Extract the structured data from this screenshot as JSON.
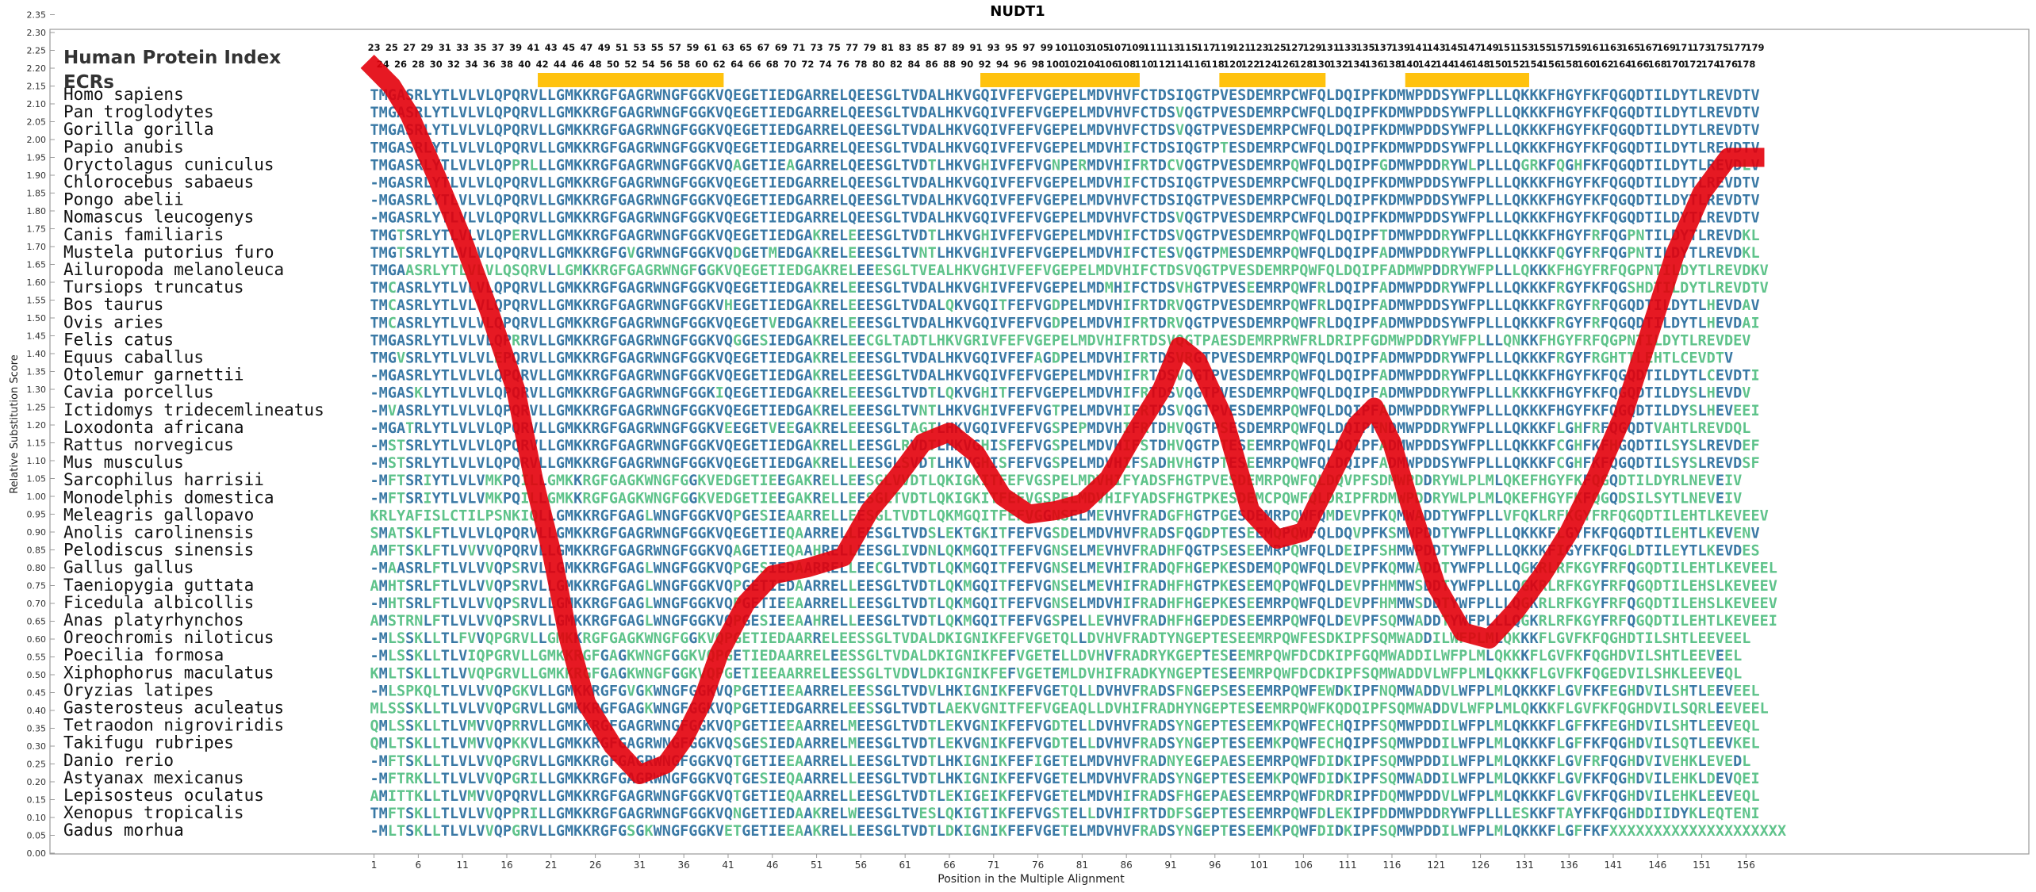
{
  "title": "NUDT1",
  "panel_labels": {
    "index": "Human Protein Index",
    "ecrs": "ECRs"
  },
  "colors": {
    "residue": "#3a79a5",
    "variant": "#5fc38b",
    "ecr": "#ffc20e",
    "score_line": "#e3000b",
    "frame": "#9a9a9a"
  },
  "y_axis": {
    "label": "Relative Substitution Score",
    "ticks": [
      "2.35",
      "2.30",
      "2.25",
      "2.20",
      "2.15",
      "2.10",
      "2.05",
      "2.00",
      "1.95",
      "1.90",
      "1.85",
      "1.80",
      "1.75",
      "1.70",
      "1.65",
      "1.60",
      "1.55",
      "1.50",
      "1.45",
      "1.40",
      "1.35",
      "1.30",
      "1.25",
      "1.20",
      "1.15",
      "1.10",
      "1.05",
      "1.00",
      "0.95",
      "0.90",
      "0.85",
      "0.80",
      "0.75",
      "0.70",
      "0.65",
      "0.60",
      "0.55",
      "0.50",
      "0.45",
      "0.40",
      "0.35",
      "0.30",
      "0.25",
      "0.20",
      "0.15",
      "0.10",
      "0.05",
      "0.00"
    ]
  },
  "x_axis": {
    "label": "Position in the Multiple Alignment",
    "ticks": [
      "1",
      "6",
      "11",
      "16",
      "21",
      "26",
      "31",
      "36",
      "41",
      "46",
      "51",
      "56",
      "61",
      "66",
      "71",
      "76",
      "81",
      "86",
      "91",
      "96",
      "101",
      "106",
      "111",
      "116",
      "121",
      "126",
      "131",
      "136",
      "141",
      "146",
      "151",
      "156"
    ]
  },
  "human_index": {
    "odd": [
      "23",
      "25",
      "27",
      "29",
      "31",
      "33",
      "35",
      "37",
      "39",
      "41",
      "43",
      "45",
      "47",
      "49",
      "51",
      "53",
      "55",
      "57",
      "59",
      "61",
      "63",
      "65",
      "67",
      "69",
      "71",
      "73",
      "75",
      "77",
      "79",
      "81",
      "83",
      "85",
      "87",
      "89",
      "91",
      "93",
      "95",
      "97",
      "99",
      "101",
      "103",
      "105",
      "107",
      "109",
      "111",
      "113",
      "115",
      "117",
      "119",
      "121",
      "123",
      "125",
      "127",
      "129",
      "131",
      "133",
      "135",
      "137",
      "139",
      "141",
      "143",
      "145",
      "147",
      "149",
      "151",
      "153",
      "155",
      "157",
      "159",
      "161",
      "163",
      "165",
      "167",
      "169",
      "171",
      "173",
      "175",
      "177",
      "179"
    ],
    "even": [
      "24",
      "26",
      "28",
      "30",
      "32",
      "34",
      "36",
      "38",
      "40",
      "42",
      "44",
      "46",
      "48",
      "50",
      "52",
      "54",
      "56",
      "58",
      "60",
      "62",
      "64",
      "66",
      "68",
      "70",
      "72",
      "74",
      "76",
      "78",
      "80",
      "82",
      "84",
      "86",
      "88",
      "90",
      "92",
      "94",
      "96",
      "98",
      "100",
      "102",
      "104",
      "106",
      "108",
      "110",
      "112",
      "114",
      "116",
      "118",
      "120",
      "122",
      "124",
      "126",
      "128",
      "130",
      "132",
      "134",
      "136",
      "138",
      "140",
      "142",
      "144",
      "146",
      "148",
      "150",
      "152",
      "154",
      "156",
      "158",
      "160",
      "162",
      "164",
      "166",
      "168",
      "170",
      "172",
      "174",
      "176",
      "178"
    ]
  },
  "ecr_regions": [
    [
      20,
      40
    ],
    [
      70,
      87
    ],
    [
      97,
      108
    ],
    [
      118,
      131
    ]
  ],
  "species": [
    {
      "name": "Homo sapiens",
      "seq": "TMGASRLYTLVLVLQPQRVLLGMKKRGFGAGRWNGFGGKVQEGETIEDGARRELQEESGLTVDALHKVGQIVFEFVGEPELMDVHVFCTDSIQGTPVESDEMRPCWFQLDQIPFKDMWPDDSYWFPLLLQKKKFHGYFKFQGQDTILDYTLREVDTV"
    },
    {
      "name": "Pan troglodytes",
      "seq": "TMGASRLYTLVLVLQPQRVLLGMKKRGFGAGRWNGFGGKVQEGETIEDGARRELQEESGLTVDALHKVGQIVFEFVGEPELMDVHVFCTDSVQGTPVESDEMRPCWFQLDQIPFKDMWPDDSYWFPLLLQKKKFHGYFKFQGQDTILDYTLREVDTV"
    },
    {
      "name": "Gorilla gorilla",
      "seq": "TMGASRLYTLVLVLQPQRVLLGMKKRGFGAGRWNGFGGKVQEGETIEDGARRELQEESGLTVDALHKVGQIVFEFVGEPELMDVHVFCTDSVQGTPVESDEMRPCWFQLDQIPFKDMWPDDSYWFPLLLQKKKFHGYFKFQGQDTILDYTLREVDTV"
    },
    {
      "name": "Papio anubis",
      "seq": "TMGASRLYTLVLVLQPQRVLLGMKKRGFGAGRWNGFGGKVQEGETIEDGARRELQEESGLTVDALHKVGQIVFEFVGEPELMDVHIFCTDSIQGTPTESDEMRPCWFQLDQIPFKDMWPDDSYWFPLLLQKKKFHGYFKFQGQDTILDYTLREVDTV"
    },
    {
      "name": "Oryctolagus cuniculus",
      "seq": "TMGASRLYTLVLVLQPPRLLLGMKKRGFGAGRWNGFGGKVQAGETIEAGARRELQEESGLTVDTLHKVGHIVFEFVGNPERMDVHIFRTDCVQGTPVESDEMRPQWFQLDQIPFGDMWPDDRYWLPLLLQGRKFQGHFKFQGQDTILDYTLREVDLV"
    },
    {
      "name": "Chlorocebus sabaeus",
      "seq": "-MGASRLYTLVLVLQPQRVLLGMKKRGFGAGRWNGFGGKVQEGETIEDGARRELQEESGLTVDALHKVGQIVFEFVGEPELMDVHIFCTDSIQGTPVESDEMRPCWFQLDQIPFKDMWPDDSYWFPLLLQKKKFHGYFKFQGQDTILDYTLREVDTV"
    },
    {
      "name": "Pongo abelii",
      "seq": "-MGASRLYTLVLVLQPQRVLLGMKKRGFGAGRWNGFGGKVQEGETIEDGARRELQEESGLTVDALHKVGQIVFEFVGEPELMDVHVFCTDSIQGTPVESDEMRPCWFQLDQIPFKDMWPDDSYWFPLLLQKKKFHGYFKFQGQDTILDYTLREVDTV"
    },
    {
      "name": "Nomascus leucogenys",
      "seq": "-MGASRLYTLVLVLQPQRVLLGMKKRGFGAGRWNGFGGKVQEGETIEDGARRELQEESGLTVDALHKVGQIVFEFVGEPELMDVHVFCTDSVQGTPVESDEMRPCWFQLDQIPFKDMWPDDSYWFPLLLQKKKFHGYFKFQGQDTILDYTLREVDTV"
    },
    {
      "name": "Canis familiaris",
      "seq": "TMGTSRLYTLVLVLQPERVLLGMKKRGFGAGRWNGFGGKVQEGETIEDGAKRELEEESGLTVDTLHKVGHIVFEFVGEPELMDVHIFCTDSVQGTPVESDEMRPQWFQLDQIPFTDMWPDDRYWFPLLLQKKKFHGYFRFQGPNTILDYTLREVDKL"
    },
    {
      "name": "Mustela putorius furo",
      "seq": "TMGTSRLYTLVLVLQPQRVLLGMKKRGFGVGRWNGFGGKVQDGETMEDGAKRELEEESGLTVNTLHKVGHIVFEFVGEPELMDVHIFCTESVQGTPMESDEMRPQWFQLDQIPFADMWPDDRYWFPLLLQKKKFQGYFRFQGPNTILDYTLREVDKL"
    },
    {
      "name": "Ailuropoda melanoleuca",
      "seq": "TMGAASRLYTLVLVLQSQRVLLGMKKRGFGAGRWNGFGGKVQEGETIEDGAKRELEEESGLTVEALHKVGHIVFEFVGEPELMDVHIFCTDSVQGTPVESDEMRPQWFQLDQIPFADMWPDDRYWFPLLLQKKKFHGYFRFQGPNTILDYTLREVDKV"
    },
    {
      "name": "Tursiops truncatus",
      "seq": "TMCASRLYTLVLVLQPQRVLLGMKKRGFGAGRWNGFGGKVQEGETIEDGAKRELEEESGLTVDALHKVGHIVFEFVGEPELMDMHIFCTDSVHGTPVESEEMRPQWFRLDQIPFADMWPDDRYWFPLLLQKKKFRGYFKFQGSHDTILDYTLREVDTV"
    },
    {
      "name": "Bos taurus",
      "seq": "TMCASRLYTLVLVLQPQRVLLGMKKRGFGAGRWNGFGGKVHEGETIEDGAKRELEEESGLTVDALQKVGQITFEFVGDPELMDVHIFRTDRVQGTPVESDEMRPQWFRLDQIPFADMWPDDSYWFPLLLQKKKFRGYFRFQGQDTILDYTLHEVDAV"
    },
    {
      "name": "Ovis aries",
      "seq": "TMCASRLYTLVLVLQPQRVLLGMKKRGFGAGRWNGFGGKVQEGETVEDGAKRELEEESGLTVDALHKVGQIVFEFVGDPELMDVHIFRTDRVQGTPVESDEMRPQWFRLDQIPFADMWPDDSYWFPLLLQKKKFRGYFRFQGQDTILDYTLHEVDAI"
    },
    {
      "name": "Felis catus",
      "seq": "TMGASRLYTLVLVLQPRRVLLGMKKRGFGAGRWNGFGGKVQGGESIEDGAKRELEECGLTADTLHKVGRIVFEFVGEPELMDVHIFRTDSVQGTPAESDEMRPRWFRLDRIPFGDMWPDDRYWFPLLLQNKKFHGYFRFQGPNTILDYTLREVDEV"
    },
    {
      "name": "Equus caballus",
      "seq": "TMGVSRLYTLVLVLEPQRVLLGMKKRGFGAGRWNGFGGKVQEGETIEDGAKRELEEESGLTVDALHKVGQIVFEFAGDPELMDVHIFRTDSVRGTPVESDEMRPQWFQLDQIPFADMWPDDRYWFPLLLQKKKFRGYFRGHTTLEHTLCEVDTV"
    },
    {
      "name": "Otolemur garnettii",
      "seq": "-MGASRLYTLVLVLQPQRVLLGMKKRGFGAGRWNGFGGKVQEGETIEDGAKRELEEESGLTVDALHKVGQIVFEFVGEPELMDVHIFRTDSVQGTPVESDEMRPQWFQLDQIPFADMWPDDRYWFPLLLQKKKFHGYFKFQGQDTILDYTLCEVDTI"
    },
    {
      "name": "Cavia porcellus",
      "seq": "-MGASKLYTLVLVLQPQRVLLGMKKRGFGAGRWNGFGGKIQEGETIEDGAKRELEEESGLTVDTLQKVGHITFEFVGEPELMDVHIFRTDSVQGTPVESDEMRPQWFQLDQIPFADMWPDDRYWFPLLLKKKKFHGYFKFQGQDTILDYSLHEVDV"
    },
    {
      "name": "Ictidomys tridecemlineatus",
      "seq": "-MVASRLYTLVLVLQPQRVLLGMKKRGFGAGRWNGFGGKVQEGETIEDGAKRELEEESGLTVNTLHKVGHIVFEFVGTPELMDVHIFRTDSVQGTPVESDEMRPQWFQLDQIPFADMWPDDRYWFPLLLQKKKFHGYFKFQGQDTILDYSLHEVEEI"
    },
    {
      "name": "Loxodonta africana",
      "seq": "-MGATRLYTLVLVLQPQRVLLGMKKRGFGAGRWNGFGGKVEEGETVEEGAKRELEEESGLTAGTLHKVGQIVFEFVGSPEPMDVHIFRTDHVQGTPSESDEMRPQWFQLDQIPFNDMWPDDRYWFPLLLQKKKFLGHFRFQGQDTVAHTLREVDQL"
    },
    {
      "name": "Rattus norvegicus",
      "seq": "-MSTSRLYTLVLVLQPQRVLLGMKKRGFGAGRWNGFGGKVQEGETIEDGAKRELLEESGLRVDTLHKVGHISFEFVGSPELMDVHIFSTDHVQGTPTESEEMRPQWFQLDQIPFADMWPDDSYWFPLLLQKKKFCGHFKFHGQDTILSYSLREVDEF"
    },
    {
      "name": "Mus musculus",
      "seq": "-MSTSRLYTLVLVLQPQRVLLGMKKRGFGAGRWNGFGGKVQEGETIEDGAKRELLEESGLSVDTLHKVGHISFEFVGSPELMDVHIFSADHVHGTPTESEEMRPQWFQLDQIPFADMWPDDSYWFPLLLQKKKFCGHFKFQGQDTILSYSLREVDSF"
    },
    {
      "name": "Sarcophilus harrisii",
      "seq": "-MFTSRIYTLVLVMKPQILLGMKKRGFGAGKWNGFGGKVEDGETIEEGAKRELLEESGLVVDTLQKIGKITFEFVGSPELMDVHIFYADSFHGTPVESDEMRPQWFQLDQVPFSDMWPDDRYWLPLMLQKEFHGYFKFQGQDTILDYRLNEVEIV"
    },
    {
      "name": "Monodelphis domestica",
      "seq": "-MFTSRIYTLVLVMKPQILLGMKKRGFGAGKWNGFGGKVEDGETIEEGAKRELLEESGLTVDTLQKIGKITFEFVGSPELMDVHIFYADSFHGTPKESDEMCPQWFQLDRIPFRDMWPDDRYWLPLMLQKEFHGYFKFQGQDSILSYTLNEVEIV"
    },
    {
      "name": "Meleagris gallopavo",
      "seq": "KRLYAFISLCTILPSNKIQLLGMKKRGFGAGLWNGFGGKVQPGESIEAARRELLEESGLTVDTLQKMGQITFEFVGGNSELMEVHVFRADGFHGTPGESDEMRPQWFQMDEVPFKQMWADDTYWFPLLVFQKLRFKGYFRFQGQDTILEHTLKEVEEV"
    },
    {
      "name": "Anolis carolinensis",
      "seq": "SMATSKLFTLVLVLQPQRVLLGMKKRGFGAGRWNGFGGKVQEGETIEQAARRELLEESGLTVDSLEKTGKITFEFVGSDELMDVHVFRADSFQGDPTESEEMQPQWFQLDQVPFKSMWPDDTYWFPLLLQKKKFLGYFKFQGQDTILEHTLKEVENV"
    },
    {
      "name": "Pelodiscus sinensis",
      "seq": "AMFTSKLFTLVVVVQPQRVLLGMKKRGFGAGRWNGFGGKVQAGETIEQAAHRELLEESGLIVDNLQKMGQITFEFVGNSELMEVHVFRADHFQGTPSESEEMRPQWFQLDEIPFSHMWPDDTYWFPLLLQKKKFIGYFKFQGLDTILEYTLKEVDES"
    },
    {
      "name": "Gallus gallus",
      "seq": "-MAASRLFTLVLVVQPSRVLLGMKKRGFGAGLWNGFGGKVQPGESIEDAARRELLEECGLTVDTLQKMGQITFEFVGNSELMEVHIFRADQFHGEPKESDEMQPQWFQLDEVPFKQMWADDTYWFPLLLQGKRLRFKGYFRFQGQDTILEHTLKEVEEL"
    },
    {
      "name": "Taeniopygia guttata",
      "seq": "AMHTSRLFTLVLVVQPSRVLLGMKKRGFGAGLWNGFGGKVQPGETIEDAARRELLEESGLTVDTLQKMGQITFEFVGNSELMEVHIFRADHFHGTPKESEEMQPQWFQLDEVPFHMMWSDDTYWFPLLLQGKRLRFKGYFRFQGQDTILEHSLKEVEEV"
    },
    {
      "name": "Ficedula albicollis",
      "seq": "-MHTSRLFTLVLVVQPSRVLLGMKKRGFGAGLWNGFGGKVQPGETIEEAARRELLEESGLTVDTLQKMGQITFEFVGNSELMDVHIFRADHFHGEPKESEEMRPQWFQLDEVPFHMMWSDDTYWFPLLLQGKRLRFKGYFRFQGQDTILEHSLKEVEEV"
    },
    {
      "name": "Anas platyrhynchos",
      "seq": "AMSTRNLFTLVLVVQPSRVLLGMKKRGFGAGLWNGFGGKVQPGESIEEAAHRELLEESGLTVDTLQKMGQITFEFVGSPELLEVHVFRADHFHGEPDESEEMRPQWFQLDEVPFSQMWADDTYWFPLLLQGKRLRFKGYFRFQGQDTILEHTLKEVEEI"
    },
    {
      "name": "Oreochromis niloticus",
      "seq": "-MLSSKLLTLFVVQPGRVLLGMKKRGFGAGKWNGFGGKVQPGETIEDAARRELEESSGLTVDALDKIGNIKFEFVGETQLLDVHVFRADTYNGEPTESEEMRPQWFESDKIPFSQMWADDILWFPLMLQKKKFLGVFKFQGHDTILSHTLEEVEEL"
    },
    {
      "name": "Poecilia formosa",
      "seq": "-MLSSKLLTLVIQPGRVLLGMKKRGFGAGKWNGFGGKVQPGETIEDAARRELEESSGLTVDALDKIGNIKFEFVGETELLDVHVFRADRYKGEPTESEEMRPQWFDCDKIPFGQMWADDILWFPLMLQKKKFLGVFKFQGHDVILSHTLEEVEEL"
    },
    {
      "name": "Xiphophorus maculatus",
      "seq": "KMLTSKLLTLVVQPGRVLLGMKKRGFGAGKWNGFGGKVQPGETIEEAARRELEESSGLTVDVLDKIGNIKFEFVGETEMLDVHIFRADKYNGEPTESEEMRPQWFDCDKIPFSQMWADDVLWFPLMLQKKKFLGVFKFQGEDVILSHKLEEVEQL"
    },
    {
      "name": "Oryzias latipes",
      "seq": "-MLSPKQLTLVLVVQPGKVLLGMKKRGFGVGKWNGFGGKVQPGETIEEAARRELEESSGLTVDVLHKIGNIKFEFVGETQLLDVHVFRADSFNGEPSESEEMRPQWFEWDKIPFNQMWADDVLWFPLMLQKKKFLGVFKFEGHDVILSHTLEEVEEL"
    },
    {
      "name": "Gasterosteus aculeatus",
      "seq": "MLSSSKLLTLVLVVQPGRVLLGMKKRGFGAGKWNGFGGKVQPGETIEDGARRELEESSGLTVDTLAEKVGNITFEFVGEAQLLDVHIFRADHYNGEPTESEEMRPQWFKQDQIPFSQMWADDVLWFPLMLQKKKFLGVFKFQGHDVILSQRLEEVEEL"
    },
    {
      "name": "Tetraodon nigroviridis",
      "seq": "QMLSSKLLTLVMVVQPRRVLLGMKKRGFGAGRWNGFGGKVQPGETIEEAARRELMEESGLTVDTLEKVGNIKFEFVGDTELLDVHVFRADSYNGEPTESEEMKPQWFECHQIPFSQMWPDDILWFPLMLQKKKFLGFFKFEGHDVILSHTLEEVEQL"
    },
    {
      "name": "Takifugu rubripes",
      "seq": "QMLTSKLLTLVMVVQPKKVLLGMKKRGFGAGRWNGFGGKVQSGESIEDAARRELMEESGLTVDTLEKVGNIKFEFVGDTELLDVHVFRADSYNGEPTESEEMKPQWFECHQIPFSQMWPDDILWFPLMLQKKKFLGFFKFQGHDVILSQTLEEVKEL"
    },
    {
      "name": "Danio rerio",
      "seq": "-MFTSKLLTLVLVVQPGRVLLGMKKRGFGAGRWNGFGGKVQTGETIEEAARRELLEESGLTVDTLHKIGNIKFEFIGETELMDVHVFRADNYEGEPAESEEMRPQWFDIDKIPFSQMWPDDILWFPLMLQKKKFLGVFRFQGHDVIVEHKLEVEDL"
    },
    {
      "name": "Astyanax mexicanus",
      "seq": "-MFTRKLLTLVLVVQPGRILLGMKKRGFGAGRWNGFGGKVQTGESIEQAARRELLEESGLTVDTLHKIGNIKFEFVGETELMDVHVFRADSYNGEPTESEEMKPQWFDIDKIPFSQMWADDILWFPLMLQKKKFLGVFKFQGHDVILEHKLDEVQEI"
    },
    {
      "name": "Lepisosteus oculatus",
      "seq": "AMITTKLLTLVMVVQPQRVLLGMKKRGFGAGRWNGFGGKVQTGETIEQAARRELLEESGLTVDTLEKIGEIKFEFVGETELMDVHIFRADSFHGEPAESEEMRPQWFDRDRIPFDQMWPDDVLWFPLMLQKKKFLGVFKFQGHDVILEHKLEEVEQL"
    },
    {
      "name": "Xenopus tropicalis",
      "seq": "TMFTSKLLTLVLVVQPPRILLGMKKRGFGAGRWNGFGGKVQNGETIEDAAKRELWEESGLTVESLQKIGTIKFEFVGSTELLDVHIFRTDDFSGEPTESEEMRPQWFDLEKIPFDDMWPDDRYWFPLLLESKKFTAYFKFQGHDDIIDYKLEQTENI"
    },
    {
      "name": "Gadus morhua",
      "seq": "-MLTSKLLTLVLVVQPGRVLLGMKKRGFGSGKWNGFGGKVETGETIEEAAKRELLEESGLTVDTLDKIGNIKFEFVGETELMDVHVFRADSYNGEPTESEEMKPQWFDIDKIPFSQMWPDDILWFPLMLQKKKFLGFFKFXXXXXXXXXXXXXXXXXXXX"
    }
  ],
  "score_trace": {
    "positions": [
      1,
      3,
      5,
      8,
      11,
      14,
      17,
      19,
      21,
      23,
      25,
      28,
      31,
      34,
      36,
      38,
      40,
      43,
      46,
      50,
      54,
      57,
      60,
      63,
      66,
      69,
      72,
      75,
      78,
      81,
      84,
      87,
      90,
      92,
      94,
      97,
      100,
      103,
      106,
      109,
      112,
      114,
      116,
      118,
      121,
      124,
      127,
      130,
      133,
      136,
      139,
      142,
      145,
      148,
      151,
      154,
      157
    ],
    "scores": [
      2.2,
      2.15,
      2.07,
      1.9,
      1.72,
      1.52,
      1.3,
      1.05,
      0.85,
      0.6,
      0.42,
      0.3,
      0.22,
      0.25,
      0.32,
      0.42,
      0.56,
      0.7,
      0.78,
      0.8,
      0.83,
      0.96,
      1.05,
      1.15,
      1.18,
      1.12,
      1.0,
      0.95,
      0.96,
      0.98,
      1.05,
      1.18,
      1.3,
      1.42,
      1.38,
      1.22,
      0.96,
      0.88,
      0.9,
      1.05,
      1.2,
      1.25,
      1.15,
      0.98,
      0.75,
      0.62,
      0.6,
      0.68,
      0.78,
      0.9,
      1.05,
      1.22,
      1.45,
      1.68,
      1.85,
      1.95,
      1.95
    ]
  }
}
